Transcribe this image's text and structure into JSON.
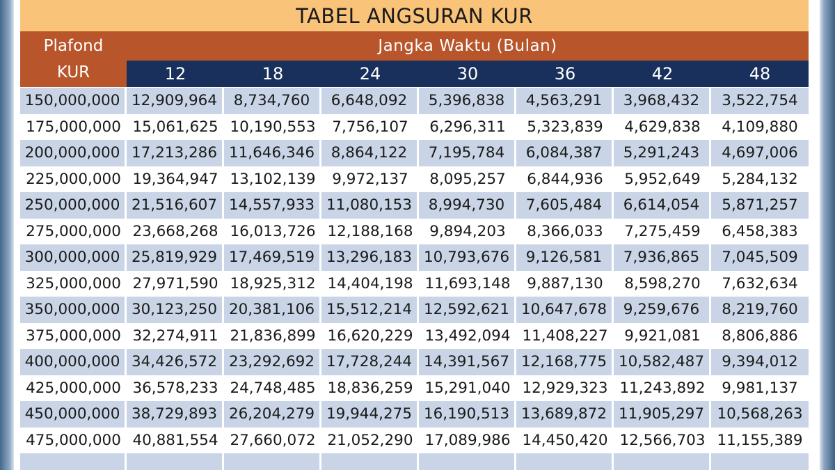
{
  "table": {
    "title": "TABEL ANGSURAN KUR",
    "plafond_label_line1": "Plafond",
    "plafond_label_line2": "KUR",
    "term_label": "Jangka Waktu (Bulan)",
    "months": [
      "12",
      "18",
      "24",
      "30",
      "36",
      "42",
      "48"
    ],
    "rows": [
      {
        "plafond": "150,000,000",
        "values": [
          "12,909,964",
          "8,734,760",
          "6,648,092",
          "5,396,838",
          "4,563,291",
          "3,968,432",
          "3,522,754"
        ]
      },
      {
        "plafond": "175,000,000",
        "values": [
          "15,061,625",
          "10,190,553",
          "7,756,107",
          "6,296,311",
          "5,323,839",
          "4,629,838",
          "4,109,880"
        ]
      },
      {
        "plafond": "200,000,000",
        "values": [
          "17,213,286",
          "11,646,346",
          "8,864,122",
          "7,195,784",
          "6,084,387",
          "5,291,243",
          "4,697,006"
        ]
      },
      {
        "plafond": "225,000,000",
        "values": [
          "19,364,947",
          "13,102,139",
          "9,972,137",
          "8,095,257",
          "6,844,936",
          "5,952,649",
          "5,284,132"
        ]
      },
      {
        "plafond": "250,000,000",
        "values": [
          "21,516,607",
          "14,557,933",
          "11,080,153",
          "8,994,730",
          "7,605,484",
          "6,614,054",
          "5,871,257"
        ]
      },
      {
        "plafond": "275,000,000",
        "values": [
          "23,668,268",
          "16,013,726",
          "12,188,168",
          "9,894,203",
          "8,366,033",
          "7,275,459",
          "6,458,383"
        ]
      },
      {
        "plafond": "300,000,000",
        "values": [
          "25,819,929",
          "17,469,519",
          "13,296,183",
          "10,793,676",
          "9,126,581",
          "7,936,865",
          "7,045,509"
        ]
      },
      {
        "plafond": "325,000,000",
        "values": [
          "27,971,590",
          "18,925,312",
          "14,404,198",
          "11,693,148",
          "9,887,130",
          "8,598,270",
          "7,632,634"
        ]
      },
      {
        "plafond": "350,000,000",
        "values": [
          "30,123,250",
          "20,381,106",
          "15,512,214",
          "12,592,621",
          "10,647,678",
          "9,259,676",
          "8,219,760"
        ]
      },
      {
        "plafond": "375,000,000",
        "values": [
          "32,274,911",
          "21,836,899",
          "16,620,229",
          "13,492,094",
          "11,408,227",
          "9,921,081",
          "8,806,886"
        ]
      },
      {
        "plafond": "400,000,000",
        "values": [
          "34,426,572",
          "23,292,692",
          "17,728,244",
          "14,391,567",
          "12,168,775",
          "10,582,487",
          "9,394,012"
        ]
      },
      {
        "plafond": "425,000,000",
        "values": [
          "36,578,233",
          "24,748,485",
          "18,836,259",
          "15,291,040",
          "12,929,323",
          "11,243,892",
          "9,981,137"
        ]
      },
      {
        "plafond": "450,000,000",
        "values": [
          "38,729,893",
          "26,204,279",
          "19,944,275",
          "16,190,513",
          "13,689,872",
          "11,905,297",
          "10,568,263"
        ]
      },
      {
        "plafond": "475,000,000",
        "values": [
          "40,881,554",
          "27,660,072",
          "21,052,290",
          "17,089,986",
          "14,450,420",
          "12,566,703",
          "11,155,389"
        ]
      }
    ]
  }
}
